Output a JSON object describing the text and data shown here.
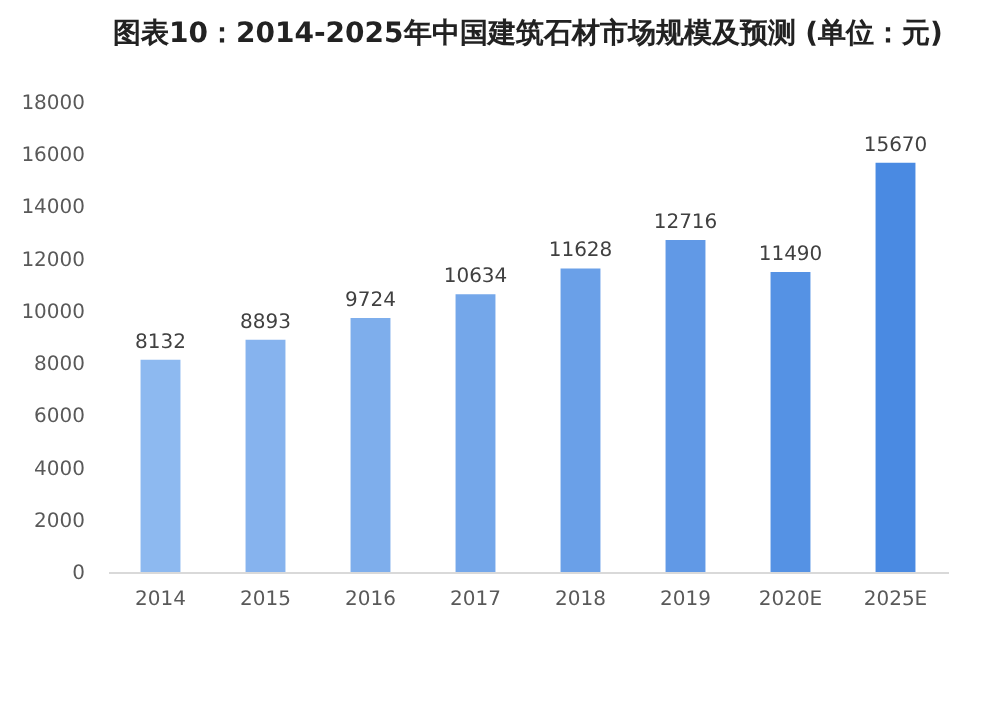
{
  "chart_data": {
    "type": "bar",
    "title": "图表10：2014-2025年中国建筑石材市场规模及预测 (单位：元)",
    "categories": [
      "2014",
      "2015",
      "2016",
      "2017",
      "2018",
      "2019",
      "2020E",
      "2025E"
    ],
    "values": [
      8132,
      8893,
      9724,
      10634,
      11628,
      12716,
      11490,
      15670
    ],
    "colors": [
      "#8db9f0",
      "#86b3ee",
      "#7eaeec",
      "#74a7ea",
      "#6aa0e8",
      "#6199e6",
      "#5592e4",
      "#4a8ae2"
    ],
    "ylim": [
      0,
      18000
    ],
    "yticks": [
      0,
      2000,
      4000,
      6000,
      8000,
      10000,
      12000,
      14000,
      16000,
      18000
    ],
    "data_labels": true
  }
}
